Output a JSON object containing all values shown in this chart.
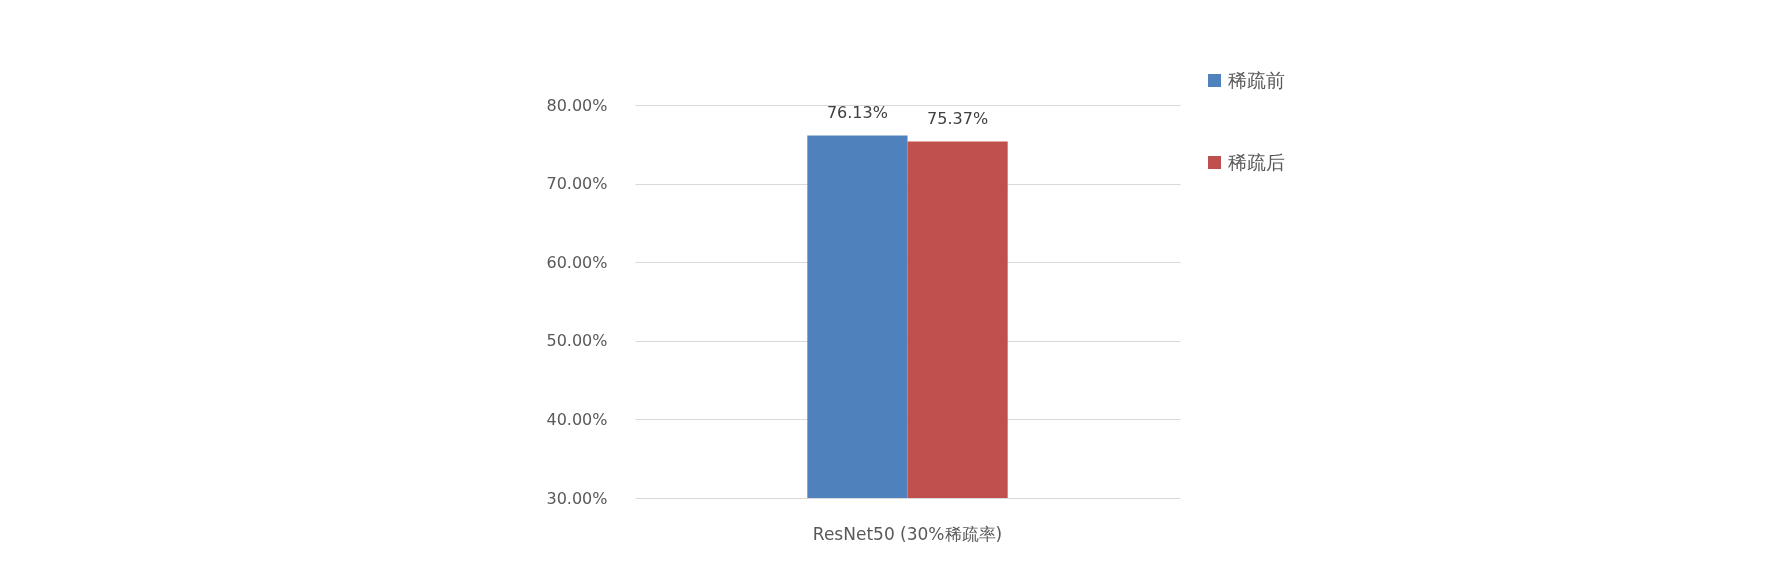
{
  "chart_data": {
    "type": "bar",
    "categories": [
      "ResNet50 (30%稀疏率)"
    ],
    "series": [
      {
        "name": "稀疏前",
        "color": "#4f81bd",
        "values": [
          76.13
        ],
        "value_labels": [
          "76.13%"
        ]
      },
      {
        "name": "稀疏后",
        "color": "#c0504d",
        "values": [
          75.37
        ],
        "value_labels": [
          "75.37%"
        ]
      }
    ],
    "ylim": [
      30,
      80
    ],
    "yticks": [
      {
        "value": 30,
        "label": "30.00%"
      },
      {
        "value": 40,
        "label": "40.00%"
      },
      {
        "value": 50,
        "label": "50.00%"
      },
      {
        "value": 60,
        "label": "60.00%"
      },
      {
        "value": 70,
        "label": "70.00%"
      },
      {
        "value": 80,
        "label": "80.00%"
      }
    ],
    "grid": "y",
    "legend": "right"
  }
}
